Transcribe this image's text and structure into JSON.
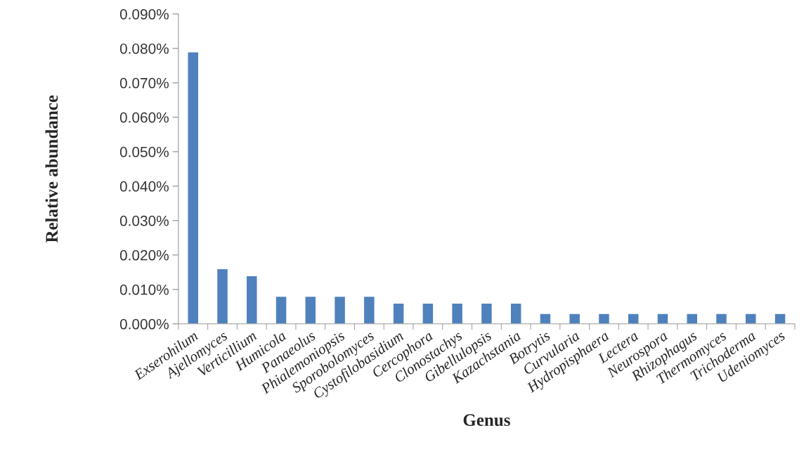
{
  "chart_data": {
    "type": "bar",
    "xlabel": "Genus",
    "ylabel": "Relative abundance",
    "categories": [
      "Exserohilum",
      "Ajellomyces",
      "Verticillium",
      "Humicola",
      "Panaeolus",
      "Phialemoniopsis",
      "Sporobolomyces",
      "Cystofilobasidium",
      "Cercophora",
      "Clonostachys",
      "Gibellulopsis",
      "Kazachstania",
      "Botrytis",
      "Curvularia",
      "Hydropisphaera",
      "Lectera",
      "Neurospora",
      "Rhizophagus",
      "Thermomyces",
      "Trichoderma",
      "Udeniomyces"
    ],
    "values": [
      0.079,
      0.016,
      0.014,
      0.008,
      0.008,
      0.008,
      0.008,
      0.006,
      0.006,
      0.006,
      0.006,
      0.006,
      0.003,
      0.003,
      0.003,
      0.003,
      0.003,
      0.003,
      0.003,
      0.003,
      0.003
    ],
    "color": "#4f81bd",
    "ylim": [
      0,
      0.09
    ],
    "yticks": [
      {
        "value": 0,
        "label": "0.000%"
      },
      {
        "value": 0.01,
        "label": "0.010%"
      },
      {
        "value": 0.02,
        "label": "0.020%"
      },
      {
        "value": 0.03,
        "label": "0.030%"
      },
      {
        "value": 0.04,
        "label": "0.040%"
      },
      {
        "value": 0.05,
        "label": "0.050%"
      },
      {
        "value": 0.06,
        "label": "0.060%"
      },
      {
        "value": 0.07,
        "label": "0.070%"
      },
      {
        "value": 0.08,
        "label": "0.080%"
      },
      {
        "value": 0.09,
        "label": "0.090%"
      }
    ],
    "grid": false
  }
}
